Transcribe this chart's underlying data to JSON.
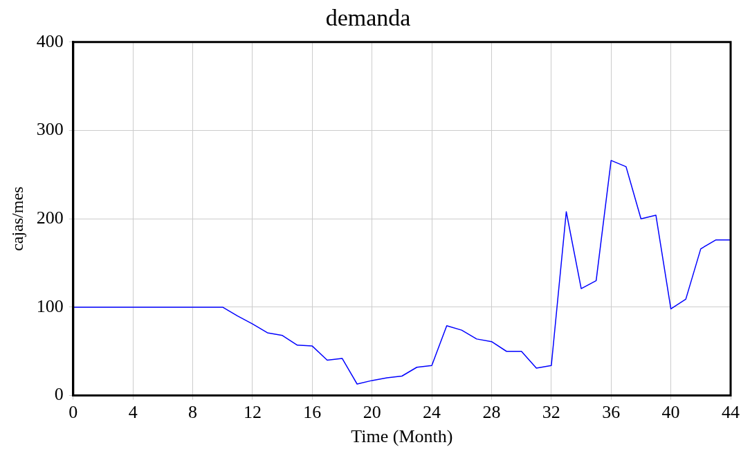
{
  "chart_data": {
    "type": "line",
    "title": "demanda",
    "xlabel": "Time (Month)",
    "ylabel": "cajas/mes",
    "x": [
      0,
      1,
      2,
      3,
      4,
      5,
      6,
      7,
      8,
      9,
      10,
      11,
      12,
      13,
      14,
      15,
      16,
      17,
      18,
      19,
      20,
      21,
      22,
      23,
      24,
      25,
      26,
      27,
      28,
      29,
      30,
      31,
      32,
      33,
      34,
      35,
      36,
      37,
      38,
      39,
      40,
      41,
      42,
      43,
      44
    ],
    "series": [
      {
        "color": "#0000ff",
        "values": [
          100,
          100,
          100,
          100,
          100,
          100,
          100,
          100,
          100,
          100,
          100,
          90,
          81,
          71,
          68,
          57,
          56,
          40,
          42,
          13,
          17,
          20,
          22,
          32,
          34,
          79,
          74,
          64,
          61,
          50,
          50,
          31,
          34,
          208,
          121,
          130,
          266,
          259,
          200,
          204,
          98,
          109,
          166,
          176,
          176
        ]
      }
    ],
    "xlim": [
      0,
      44
    ],
    "xticks": [
      0,
      4,
      8,
      12,
      16,
      20,
      24,
      28,
      32,
      36,
      40,
      44
    ],
    "ylim": [
      0,
      400
    ],
    "yticks": [
      0,
      100,
      200,
      300,
      400
    ],
    "grid": true,
    "legend": false,
    "marker": "none",
    "line_style": "solid"
  }
}
